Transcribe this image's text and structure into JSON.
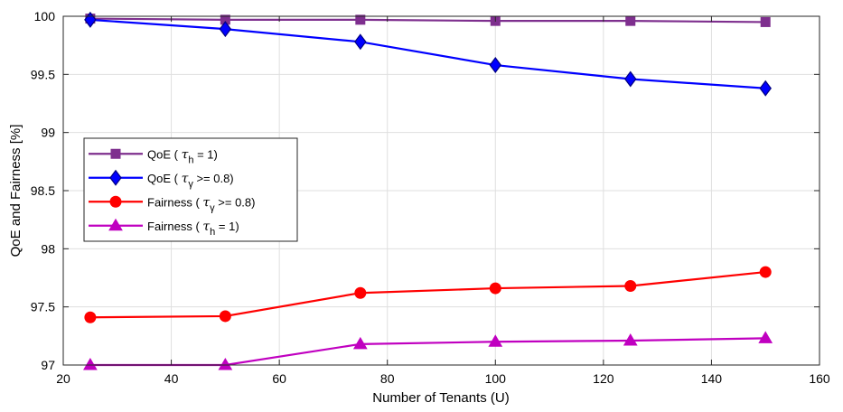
{
  "chart_data": {
    "type": "line",
    "xlabel": "Number of Tenants (U)",
    "ylabel": "QoE and Fairness [%]",
    "xlim": [
      20,
      160
    ],
    "ylim": [
      97,
      100
    ],
    "xticks": [
      "20",
      "40",
      "60",
      "80",
      "100",
      "120",
      "140",
      "160"
    ],
    "yticks": [
      "97",
      "97.5",
      "98",
      "98.5",
      "99",
      "99.5",
      "100"
    ],
    "grid": true,
    "legend_position": "middle-left",
    "x": [
      25,
      50,
      75,
      100,
      125,
      150
    ],
    "series": [
      {
        "name": "QoE ( τh = 1)",
        "legend": {
          "pre": "QoE (",
          "sym": "τ",
          "sub": "h",
          "post": " = 1)"
        },
        "marker": "square",
        "color": "#7E2F8E",
        "values": [
          99.98,
          99.97,
          99.97,
          99.96,
          99.96,
          99.95
        ]
      },
      {
        "name": "QoE ( τγ >= 0.8)",
        "legend": {
          "pre": "QoE (",
          "sym": "τ",
          "sub": "γ",
          "post": " >= 0.8)"
        },
        "marker": "diamond",
        "color": "#0000FF",
        "values": [
          99.97,
          99.89,
          99.78,
          99.58,
          99.46,
          99.38
        ]
      },
      {
        "name": "Fairness ( τγ >= 0.8)",
        "legend": {
          "pre": "Fairness ( ",
          "sym": "τ",
          "sub": "γ",
          "post": " >= 0.8)"
        },
        "marker": "circle",
        "color": "#FF0000",
        "values": [
          97.41,
          97.42,
          97.62,
          97.66,
          97.68,
          97.8
        ]
      },
      {
        "name": "Fairness ( τh = 1)",
        "legend": {
          "pre": "Fairness ( ",
          "sym": "τ",
          "sub": "h",
          "post": " = 1)"
        },
        "marker": "triangle",
        "color": "#C000C0",
        "values": [
          97.0,
          97.0,
          97.18,
          97.2,
          97.21,
          97.23
        ]
      }
    ]
  }
}
